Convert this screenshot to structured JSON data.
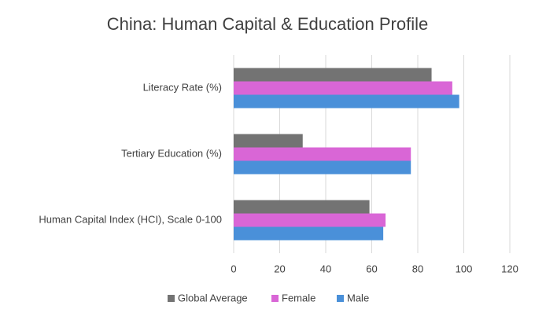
{
  "chart_data": {
    "type": "hbar",
    "title": "China: Human Capital & Education Profile",
    "categories": [
      "Literacy Rate (%)",
      "Tertiary Education (%)",
      "Human Capital Index (HCI), Scale 0-100"
    ],
    "series": [
      {
        "name": "Global Average",
        "color": "#737373",
        "values": [
          86,
          30,
          59
        ]
      },
      {
        "name": "Female",
        "color": "#d966d6",
        "values": [
          95,
          77,
          66
        ]
      },
      {
        "name": "Male",
        "color": "#4a90d9",
        "values": [
          98,
          77,
          65
        ]
      }
    ],
    "xlim": [
      0,
      120
    ],
    "xticks": [
      0,
      20,
      40,
      60,
      80,
      100,
      120
    ],
    "grid": true,
    "legend": "bottom"
  }
}
